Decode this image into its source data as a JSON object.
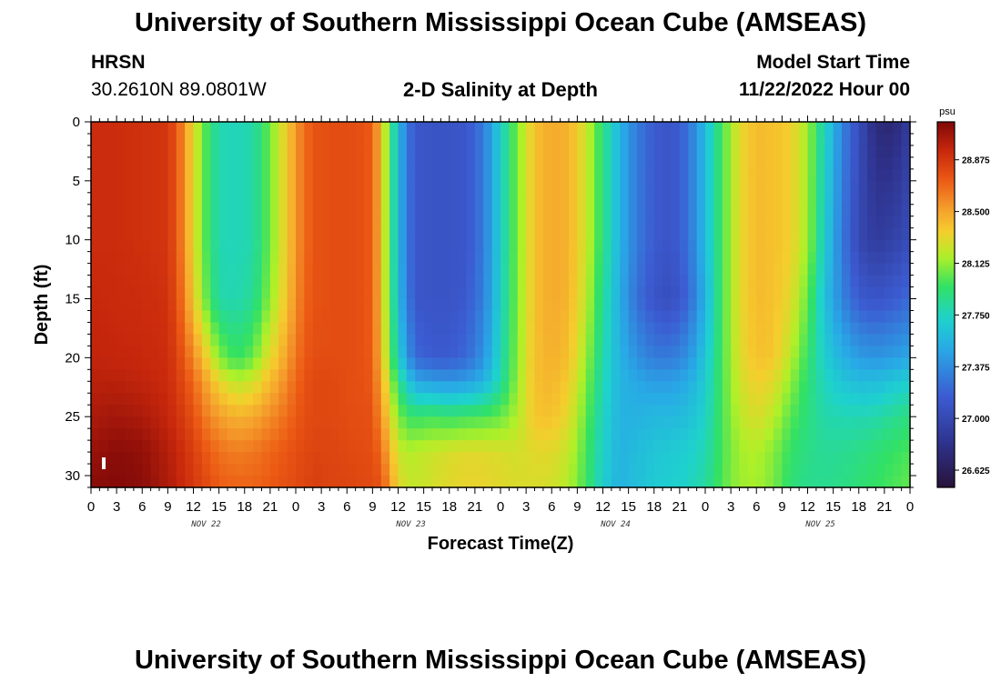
{
  "header": {
    "title": "University of Southern Mississippi Ocean Cube (AMSEAS)",
    "footer_title": "University of Southern Mississippi Ocean Cube (AMSEAS)",
    "station": "HRSN",
    "coordinates": "30.2610N  89.0801W",
    "subtitle": "2-D Salinity at Depth",
    "start_label": "Model Start Time",
    "start_value": "11/22/2022 Hour 00"
  },
  "chart_data": {
    "type": "heatmap",
    "title": "2-D Salinity at Depth",
    "xlabel": "Forecast Time(Z)",
    "ylabel": "Depth (ft)",
    "x_range_hours": [
      0,
      96
    ],
    "y_range_ft": [
      0,
      31
    ],
    "y_ticks": [
      0,
      5,
      10,
      15,
      20,
      25,
      30
    ],
    "x_tick_labels": [
      "0",
      "3",
      "6",
      "9",
      "12",
      "15",
      "18",
      "21",
      "0",
      "3",
      "6",
      "9",
      "12",
      "15",
      "18",
      "21",
      "0",
      "3",
      "6",
      "9",
      "12",
      "15",
      "18",
      "21",
      "0",
      "3",
      "6",
      "9",
      "12",
      "15",
      "18",
      "21",
      "0"
    ],
    "day_labels": [
      "NOV 22",
      "NOV 23",
      "NOV 24",
      "NOV 25"
    ],
    "colorbar": {
      "unit": "psu",
      "ticks": [
        "28.875",
        "28.500",
        "28.125",
        "27.750",
        "27.375",
        "27.000",
        "26.625"
      ],
      "range": [
        26.5,
        29.15
      ]
    },
    "profiles": {
      "hours": [
        0,
        3,
        6,
        9,
        10,
        11,
        12,
        13.5,
        15,
        17,
        19,
        20.5,
        22,
        23.5,
        25,
        26.5,
        28,
        30,
        32,
        33,
        34,
        35,
        36,
        37,
        38,
        40,
        42,
        44,
        46,
        48,
        50,
        52,
        54,
        56,
        58,
        60,
        62,
        64,
        66,
        68,
        70,
        72,
        74,
        76,
        78,
        80,
        82,
        84,
        86,
        88,
        90,
        92,
        94,
        96
      ],
      "depth_levels_ft": [
        0,
        10,
        15,
        20,
        22,
        25,
        28,
        31
      ],
      "salinity": [
        [
          28.92,
          28.92,
          28.94,
          28.96,
          28.98,
          29.02,
          29.08,
          29.12
        ],
        [
          28.92,
          28.92,
          28.93,
          28.95,
          28.98,
          29.05,
          29.12,
          29.14
        ],
        [
          28.9,
          28.9,
          28.92,
          28.94,
          28.96,
          29.02,
          29.1,
          29.12
        ],
        [
          28.88,
          28.88,
          28.9,
          28.92,
          28.93,
          28.95,
          29.0,
          29.02
        ],
        [
          28.75,
          28.75,
          28.78,
          28.84,
          28.86,
          28.9,
          28.95,
          28.97
        ],
        [
          28.55,
          28.55,
          28.6,
          28.72,
          28.78,
          28.84,
          28.9,
          28.92
        ],
        [
          28.3,
          28.3,
          28.35,
          28.58,
          28.68,
          28.76,
          28.84,
          28.87
        ],
        [
          28.0,
          28.0,
          28.05,
          28.35,
          28.5,
          28.62,
          28.74,
          28.8
        ],
        [
          27.78,
          27.78,
          27.8,
          28.1,
          28.32,
          28.52,
          28.66,
          28.72
        ],
        [
          27.76,
          27.76,
          27.78,
          27.95,
          28.2,
          28.45,
          28.62,
          28.7
        ],
        [
          27.8,
          27.8,
          27.85,
          28.05,
          28.25,
          28.48,
          28.64,
          28.7
        ],
        [
          28.0,
          28.0,
          28.05,
          28.25,
          28.38,
          28.55,
          28.68,
          28.72
        ],
        [
          28.22,
          28.22,
          28.25,
          28.4,
          28.5,
          28.62,
          28.72,
          28.76
        ],
        [
          28.45,
          28.45,
          28.48,
          28.58,
          28.64,
          28.7,
          28.76,
          28.78
        ],
        [
          28.68,
          28.68,
          28.7,
          28.74,
          28.76,
          28.78,
          28.8,
          28.82
        ],
        [
          28.76,
          28.76,
          28.76,
          28.78,
          28.8,
          28.8,
          28.82,
          28.84
        ],
        [
          28.78,
          28.78,
          28.78,
          28.78,
          28.8,
          28.8,
          28.82,
          28.82
        ],
        [
          28.78,
          28.78,
          28.78,
          28.78,
          28.78,
          28.78,
          28.8,
          28.82
        ],
        [
          28.76,
          28.76,
          28.76,
          28.76,
          28.76,
          28.78,
          28.78,
          28.8
        ],
        [
          28.72,
          28.72,
          28.72,
          28.72,
          28.74,
          28.76,
          28.78,
          28.8
        ],
        [
          28.4,
          28.4,
          28.4,
          28.42,
          28.48,
          28.56,
          28.68,
          28.76
        ],
        [
          28.0,
          28.0,
          28.02,
          28.08,
          28.2,
          28.32,
          28.45,
          28.55
        ],
        [
          27.6,
          27.6,
          27.62,
          27.72,
          27.9,
          28.1,
          28.25,
          28.32
        ],
        [
          27.3,
          27.3,
          27.32,
          27.45,
          27.7,
          27.98,
          28.18,
          28.24
        ],
        [
          27.12,
          27.12,
          27.12,
          27.22,
          27.5,
          27.95,
          28.2,
          28.22
        ],
        [
          27.1,
          27.1,
          27.1,
          27.15,
          27.45,
          27.98,
          28.24,
          28.26
        ],
        [
          27.1,
          27.1,
          27.1,
          27.15,
          27.42,
          27.95,
          28.28,
          28.3
        ],
        [
          27.12,
          27.12,
          27.14,
          27.22,
          27.45,
          27.98,
          28.3,
          28.32
        ],
        [
          27.3,
          27.3,
          27.32,
          27.4,
          27.55,
          28.0,
          28.3,
          28.32
        ],
        [
          27.7,
          27.7,
          27.72,
          27.76,
          27.8,
          28.05,
          28.28,
          28.3
        ],
        [
          28.1,
          28.1,
          28.1,
          28.12,
          28.14,
          28.18,
          28.26,
          28.28
        ],
        [
          28.4,
          28.4,
          28.4,
          28.4,
          28.4,
          28.38,
          28.3,
          28.28
        ],
        [
          28.48,
          28.48,
          28.48,
          28.46,
          28.44,
          28.4,
          28.3,
          28.26
        ],
        [
          28.45,
          28.45,
          28.44,
          28.4,
          28.36,
          28.3,
          28.22,
          28.18
        ],
        [
          28.25,
          28.25,
          28.22,
          28.15,
          28.1,
          28.05,
          28.0,
          27.98
        ],
        [
          27.9,
          27.9,
          27.85,
          27.8,
          27.78,
          27.74,
          27.72,
          27.7
        ],
        [
          27.55,
          27.55,
          27.52,
          27.55,
          27.56,
          27.55,
          27.55,
          27.55
        ],
        [
          27.3,
          27.3,
          27.25,
          27.4,
          27.5,
          27.55,
          27.6,
          27.62
        ],
        [
          27.15,
          27.15,
          27.1,
          27.3,
          27.45,
          27.58,
          27.65,
          27.68
        ],
        [
          27.1,
          27.1,
          27.05,
          27.3,
          27.45,
          27.58,
          27.68,
          27.7
        ],
        [
          27.25,
          27.25,
          27.2,
          27.4,
          27.52,
          27.62,
          27.7,
          27.74
        ],
        [
          27.6,
          27.6,
          27.55,
          27.65,
          27.68,
          27.72,
          27.78,
          27.82
        ],
        [
          28.0,
          28.0,
          28.0,
          28.0,
          28.0,
          28.0,
          28.0,
          28.02
        ],
        [
          28.3,
          28.3,
          28.3,
          28.28,
          28.25,
          28.2,
          28.15,
          28.14
        ],
        [
          28.42,
          28.42,
          28.42,
          28.4,
          28.35,
          28.28,
          28.18,
          28.16
        ],
        [
          28.4,
          28.4,
          28.4,
          28.38,
          28.3,
          28.2,
          28.1,
          28.08
        ],
        [
          28.35,
          28.35,
          28.3,
          28.2,
          28.12,
          28.02,
          27.95,
          27.92
        ],
        [
          28.15,
          28.15,
          28.05,
          27.95,
          27.92,
          27.9,
          27.88,
          27.86
        ],
        [
          27.75,
          27.7,
          27.62,
          27.7,
          27.75,
          27.8,
          27.84,
          27.86
        ],
        [
          27.35,
          27.3,
          27.35,
          27.55,
          27.65,
          27.78,
          27.85,
          27.88
        ],
        [
          27.05,
          27.0,
          27.15,
          27.45,
          27.6,
          27.78,
          27.88,
          27.92
        ],
        [
          26.75,
          26.9,
          27.1,
          27.42,
          27.6,
          27.8,
          27.92,
          27.96
        ],
        [
          26.72,
          26.95,
          27.15,
          27.45,
          27.65,
          27.85,
          27.96,
          28.0
        ],
        [
          26.92,
          27.05,
          27.22,
          27.5,
          27.7,
          27.9,
          28.0,
          28.04
        ]
      ]
    }
  }
}
